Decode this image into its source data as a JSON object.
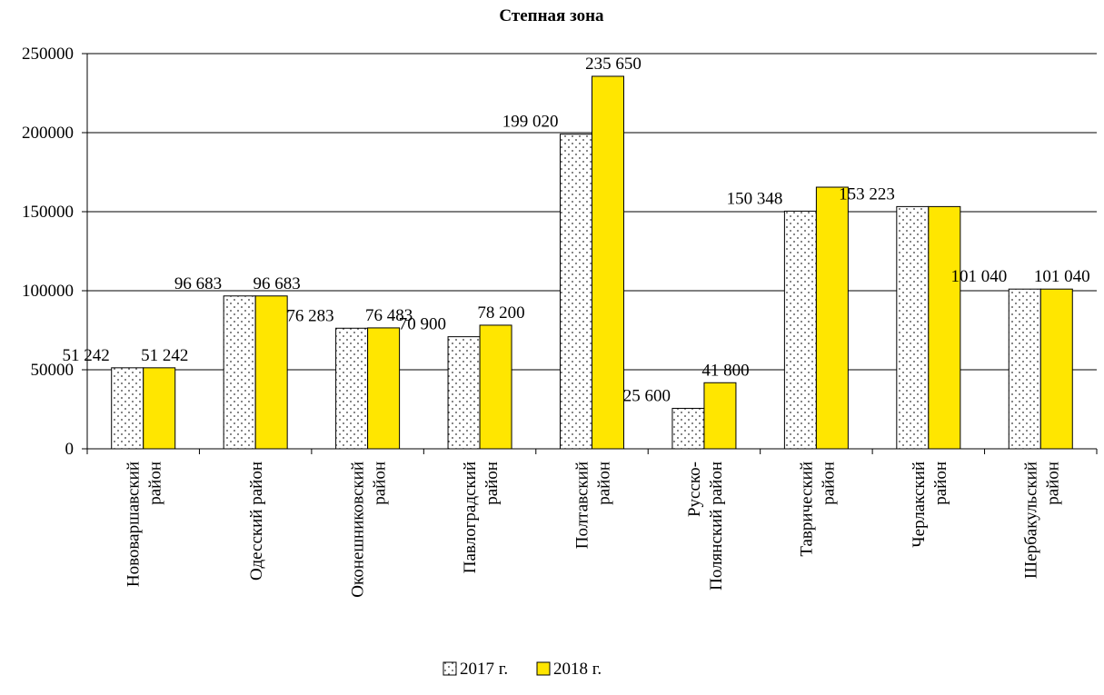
{
  "chart_data": {
    "type": "bar",
    "title": "Степная зона",
    "xlabel": "",
    "ylabel": "",
    "ylim": [
      0,
      250000
    ],
    "yticks": [
      0,
      50000,
      100000,
      150000,
      200000,
      250000
    ],
    "grid": true,
    "legend_position": "bottom",
    "categories": [
      [
        "Нововаршавский",
        "район"
      ],
      [
        "Одесский район"
      ],
      [
        "Оконешниковский",
        "район"
      ],
      [
        "Павлоградский",
        "район"
      ],
      [
        "Полтавский",
        "район"
      ],
      [
        "Русско-",
        "Полянский  район"
      ],
      [
        "Таврический",
        "район"
      ],
      [
        "Черлакский",
        "район"
      ],
      [
        "Шербакульский",
        "район"
      ]
    ],
    "series": [
      {
        "name": "2017 г.",
        "pattern": "dots",
        "color": "#ffffff",
        "values": [
          51242,
          96683,
          76283,
          70900,
          199020,
          25600,
          150348,
          153223,
          101040
        ],
        "labels": [
          "51 242",
          "96 683",
          "76 283",
          "70 900",
          "199 020",
          "25 600",
          "150 348",
          "153 223",
          "101 040"
        ]
      },
      {
        "name": "2018 г.",
        "pattern": "solid",
        "color": "#ffe600",
        "values": [
          51242,
          96683,
          76483,
          78200,
          235650,
          41800,
          165500,
          153223,
          101040
        ],
        "labels": [
          "51 242",
          "96 683",
          "76 483",
          "78 200",
          "235 650",
          "41 800",
          "",
          "",
          "101 040"
        ]
      }
    ]
  }
}
